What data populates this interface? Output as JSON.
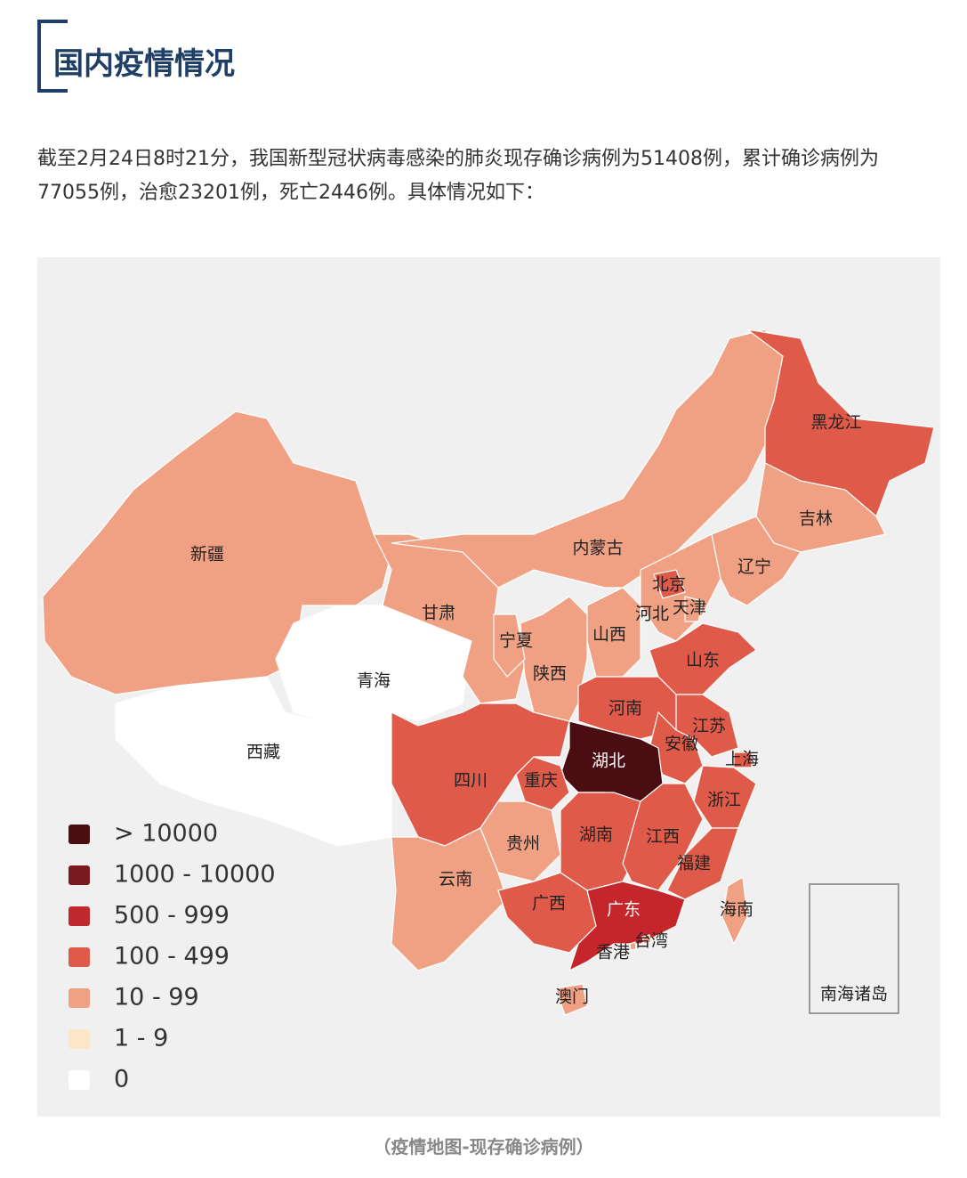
{
  "header": {
    "title": "国内疫情情况"
  },
  "intro": "截至2月24日8时21分，我国新型冠状病毒感染的肺炎现存确诊病例为51408例，累计确诊病例为77055例，治愈23201例，死亡2446例。具体情况如下：",
  "map": {
    "regions": [
      {
        "name": "新疆",
        "color": "#f0a083"
      },
      {
        "name": "西藏",
        "color": "#ffffff"
      },
      {
        "name": "青海",
        "color": "#ffffff"
      },
      {
        "name": "甘肃",
        "color": "#f0a083"
      },
      {
        "name": "内蒙古",
        "color": "#f0a083"
      },
      {
        "name": "黑龙江",
        "color": "#e05a4a"
      },
      {
        "name": "吉林",
        "color": "#f0a083"
      },
      {
        "name": "辽宁",
        "color": "#f0a083"
      },
      {
        "name": "河北",
        "color": "#f0a083"
      },
      {
        "name": "北京",
        "color": "#e05a4a"
      },
      {
        "name": "天津",
        "color": "#f0a083"
      },
      {
        "name": "山西",
        "color": "#f0a083"
      },
      {
        "name": "陕西",
        "color": "#f0a083"
      },
      {
        "name": "宁夏",
        "color": "#f0a083"
      },
      {
        "name": "山东",
        "color": "#e05a4a"
      },
      {
        "name": "河南",
        "color": "#e05a4a"
      },
      {
        "name": "江苏",
        "color": "#e05a4a"
      },
      {
        "name": "安徽",
        "color": "#e05a4a"
      },
      {
        "name": "上海",
        "color": "#e05a4a"
      },
      {
        "name": "浙江",
        "color": "#e05a4a"
      },
      {
        "name": "湖北",
        "color": "#4a0e12"
      },
      {
        "name": "重庆",
        "color": "#e05a4a"
      },
      {
        "name": "四川",
        "color": "#e05a4a"
      },
      {
        "name": "贵州",
        "color": "#f0a083"
      },
      {
        "name": "湖南",
        "color": "#e05a4a"
      },
      {
        "name": "江西",
        "color": "#e05a4a"
      },
      {
        "name": "福建",
        "color": "#e05a4a"
      },
      {
        "name": "云南",
        "color": "#f0a083"
      },
      {
        "name": "广西",
        "color": "#e05a4a"
      },
      {
        "name": "广东",
        "color": "#c4262b"
      },
      {
        "name": "海南",
        "color": "#f0a083"
      },
      {
        "name": "台湾",
        "color": "#f0a083"
      },
      {
        "name": "香港",
        "color": "#f0a083"
      },
      {
        "name": "澳门",
        "color": "#f0a083"
      },
      {
        "name": "南海诸岛",
        "color": "#f0f0f0"
      }
    ],
    "legend": [
      {
        "label": "> 10000",
        "color": "#4a0e12"
      },
      {
        "label": "1000 - 10000",
        "color": "#7a1a1f"
      },
      {
        "label": "500 - 999",
        "color": "#c0282d"
      },
      {
        "label": "100 - 499",
        "color": "#e05a4a"
      },
      {
        "label": "10 - 99",
        "color": "#f0a083"
      },
      {
        "label": "1 - 9",
        "color": "#fde5c8"
      },
      {
        "label": "0",
        "color": "#ffffff"
      }
    ]
  },
  "caption": "（疫情地图-现存确诊病例）"
}
